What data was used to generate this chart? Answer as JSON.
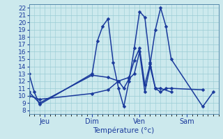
{
  "xlabel": "Température (°c)",
  "xlim": [
    0,
    36
  ],
  "ylim": [
    7.5,
    22.5
  ],
  "yticks": [
    8,
    9,
    10,
    11,
    12,
    13,
    14,
    15,
    16,
    17,
    18,
    19,
    20,
    21,
    22
  ],
  "xtick_positions": [
    3,
    12,
    21,
    30
  ],
  "xtick_labels": [
    "Jeu",
    "Dim",
    "Ven",
    "Sam"
  ],
  "background_color": "#cce9ed",
  "grid_color": "#99ccd4",
  "line_color": "#1a3a9c",
  "markersize": 2.5,
  "linewidth": 1.1,
  "lines": [
    [
      0,
      13,
      1,
      10.5,
      2,
      8.8,
      12,
      13,
      13,
      17.5,
      14,
      19.5,
      15,
      20.5,
      16,
      14.5,
      17,
      11,
      18,
      8.5,
      19,
      12,
      20,
      16.5,
      21,
      21.5,
      22,
      20.7,
      23,
      14.5,
      24,
      11,
      25,
      10.5,
      26,
      11,
      27,
      11,
      33,
      10.8
    ],
    [
      0,
      10.5,
      2,
      9.0,
      12,
      12.8,
      15,
      12.5,
      17,
      12,
      18,
      11,
      19,
      12.3,
      20,
      13,
      21,
      16,
      22,
      10.5,
      23,
      14,
      24,
      11,
      25,
      11,
      27,
      10.5
    ],
    [
      0,
      10.0,
      2,
      9.5,
      12,
      10.3,
      15,
      10.8,
      17,
      12,
      19,
      12.5,
      20,
      14.8,
      21,
      16.5,
      22,
      11.5,
      23,
      14.3,
      24,
      19,
      25,
      22,
      26,
      19.5,
      27,
      15,
      33,
      8.5,
      35,
      10.5
    ]
  ]
}
